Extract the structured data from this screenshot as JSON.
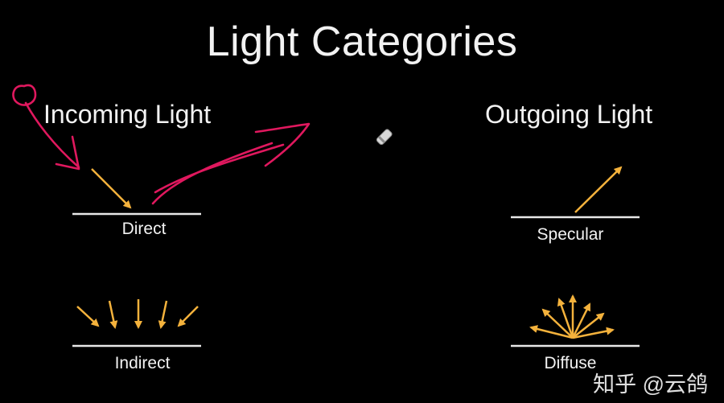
{
  "slide": {
    "title": "Light Categories",
    "incoming_heading": "Incoming Light",
    "outgoing_heading": "Outgoing Light",
    "labels": {
      "direct": "Direct",
      "indirect": "Indirect",
      "specular": "Specular",
      "diffuse": "Diffuse"
    },
    "watermark": "知乎 @云鸽"
  },
  "colors": {
    "background": "#000000",
    "text": "#f2f2f2",
    "ray": "#f4b23c",
    "surface": "#e8e8e8",
    "annotation": "#e0185e"
  },
  "icons": [
    "arrow-icon",
    "pen-pointer-icon"
  ]
}
